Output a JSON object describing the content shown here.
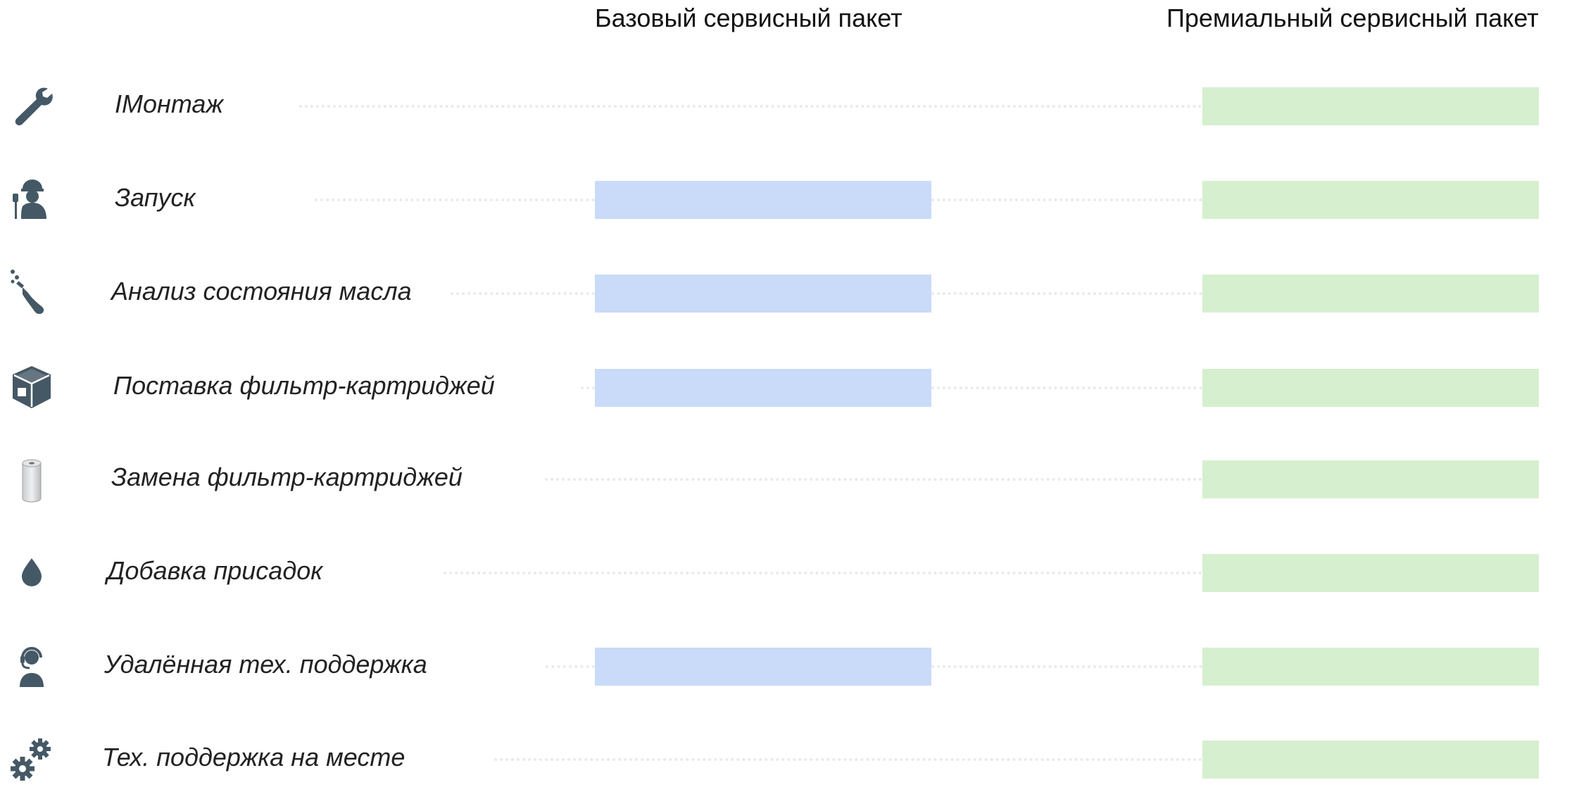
{
  "headers": {
    "basic": "Базовый сервисный пакет",
    "premium": "Премиальный сервисный пакет"
  },
  "colors": {
    "basic_bar": "#c9dbf8",
    "premium_bar": "#d6efce",
    "icon": "#455866",
    "dots": "#e8eaec"
  },
  "rows": [
    {
      "label": "IМонтаж",
      "icon": "wrench-icon",
      "basic": false,
      "premium": true
    },
    {
      "label": "Запуск",
      "icon": "worker-with-plug-icon",
      "basic": true,
      "premium": true
    },
    {
      "label": "Анализ состояния масла",
      "icon": "flask-icon",
      "basic": true,
      "premium": true
    },
    {
      "label": "Поставка фильтр-картриджей",
      "icon": "box-icon",
      "basic": true,
      "premium": true
    },
    {
      "label": "Замена фильтр-картриджей",
      "icon": "filter-cartridge-icon",
      "basic": false,
      "premium": true
    },
    {
      "label": "Добавка присадок",
      "icon": "droplet-icon",
      "basic": false,
      "premium": true
    },
    {
      "label": "Удалённая тех. поддержка",
      "icon": "headset-operator-icon",
      "basic": true,
      "premium": true
    },
    {
      "label": "Тех. поддержка на месте",
      "icon": "gears-icon",
      "basic": false,
      "premium": true
    }
  ]
}
